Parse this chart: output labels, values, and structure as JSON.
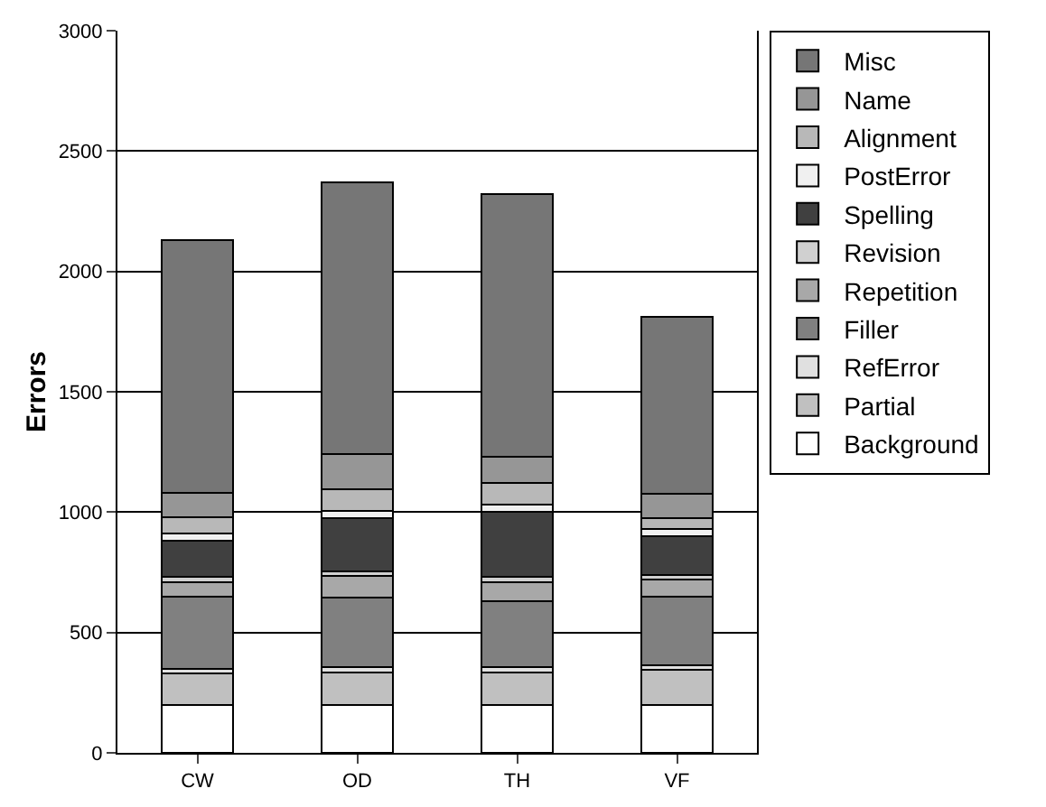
{
  "chart_data": {
    "type": "bar",
    "stacked": true,
    "categories": [
      "CW",
      "OD",
      "TH",
      "VF"
    ],
    "ylabel": "Errors",
    "ylim": [
      0,
      3000
    ],
    "yticks": [
      0,
      500,
      1000,
      1500,
      2000,
      2500,
      3000
    ],
    "grid": "y",
    "legend": "right",
    "series": [
      {
        "name": "Background",
        "color": "#ffffff",
        "values": [
          200,
          200,
          200,
          200
        ]
      },
      {
        "name": "Partial",
        "color": "#c0c0c0",
        "values": [
          130,
          135,
          135,
          145
        ]
      },
      {
        "name": "RefError",
        "color": "#e0e0e0",
        "values": [
          20,
          20,
          20,
          20
        ]
      },
      {
        "name": "Filler",
        "color": "#808080",
        "values": [
          300,
          290,
          275,
          285
        ]
      },
      {
        "name": "Repetition",
        "color": "#a8a8a8",
        "values": [
          60,
          90,
          80,
          70
        ]
      },
      {
        "name": "Revision",
        "color": "#d0d0d0",
        "values": [
          20,
          20,
          20,
          20
        ]
      },
      {
        "name": "Spelling",
        "color": "#404040",
        "values": [
          150,
          220,
          270,
          160
        ]
      },
      {
        "name": "PostError",
        "color": "#f0f0f0",
        "values": [
          30,
          30,
          30,
          30
        ]
      },
      {
        "name": "Alignment",
        "color": "#b8b8b8",
        "values": [
          70,
          90,
          90,
          45
        ]
      },
      {
        "name": "Name",
        "color": "#969696",
        "values": [
          100,
          145,
          110,
          100
        ]
      },
      {
        "name": "Misc",
        "color": "#767676",
        "values": [
          1050,
          1130,
          1090,
          735
        ]
      }
    ]
  }
}
